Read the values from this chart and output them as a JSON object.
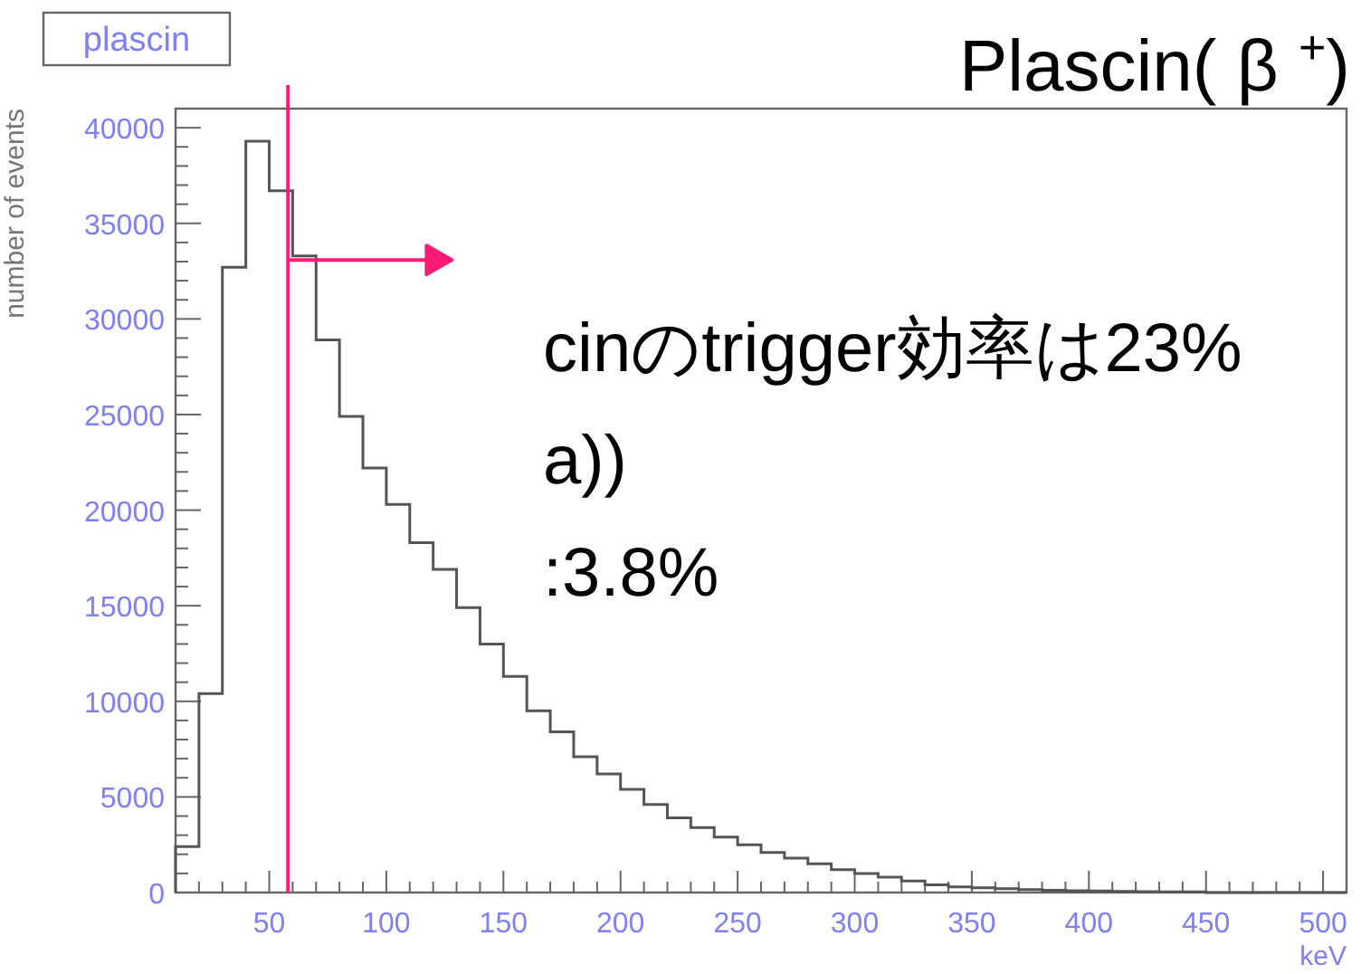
{
  "chart_data": {
    "type": "histogram",
    "title": "Plascin( β $^{+}$)",
    "subtitle": "plascin",
    "xlabel": "keV",
    "ylabel": "number of events",
    "annotations": [
      "cinのtrigger効率は23%",
      "a))",
      ":3.8%"
    ],
    "bins": [
      10,
      20,
      30,
      40,
      50,
      60,
      70,
      80,
      90,
      100,
      110,
      120,
      130,
      140,
      150,
      160,
      170,
      180,
      190,
      200,
      210,
      220,
      230,
      240,
      250,
      260,
      270,
      280,
      290,
      300,
      310,
      320,
      330,
      340,
      350,
      360,
      370,
      380,
      390,
      400,
      410,
      420,
      430,
      440,
      450,
      460,
      470,
      480,
      490,
      500,
      510
    ],
    "values": [
      2400,
      10400,
      32700,
      39300,
      36700,
      33300,
      28900,
      24900,
      22200,
      20300,
      18300,
      16900,
      14900,
      13000,
      11300,
      9500,
      8400,
      7100,
      6200,
      5400,
      4600,
      3900,
      3400,
      2900,
      2500,
      2100,
      1800,
      1500,
      1200,
      1000,
      800,
      600,
      400,
      300,
      250,
      200,
      150,
      120,
      100,
      80,
      60,
      50,
      40,
      30,
      0,
      0,
      0,
      0,
      0,
      0
    ],
    "color": "#555555",
    "xlim": [
      10,
      510
    ],
    "ylim": [
      0,
      41000
    ],
    "xticks": [
      {
        "value": 20,
        "label": null
      },
      {
        "value": 30,
        "label": null
      },
      {
        "value": 40,
        "label": null
      },
      50,
      {
        "value": 60,
        "label": null
      },
      {
        "value": 70,
        "label": null
      },
      {
        "value": 80,
        "label": null
      },
      {
        "value": 90,
        "label": null
      },
      100,
      {
        "value": 110,
        "label": null
      },
      {
        "value": 120,
        "label": null
      },
      {
        "value": 130,
        "label": null
      },
      {
        "value": 140,
        "label": null
      },
      150,
      {
        "value": 160,
        "label": null
      },
      {
        "value": 170,
        "label": null
      },
      {
        "value": 180,
        "label": null
      },
      {
        "value": 190,
        "label": null
      },
      200,
      {
        "value": 210,
        "label": null
      },
      {
        "value": 220,
        "label": null
      },
      {
        "value": 230,
        "label": null
      },
      {
        "value": 240,
        "label": null
      },
      250,
      {
        "value": 260,
        "label": null
      },
      {
        "value": 270,
        "label": null
      },
      {
        "value": 280,
        "label": null
      },
      {
        "value": 290,
        "label": null
      },
      300,
      {
        "value": 310,
        "label": null
      },
      {
        "value": 320,
        "label": null
      },
      {
        "value": 330,
        "label": null
      },
      {
        "value": 340,
        "label": null
      },
      350,
      {
        "value": 360,
        "label": null
      },
      {
        "value": 370,
        "label": null
      },
      {
        "value": 380,
        "label": null
      },
      {
        "value": 390,
        "label": null
      },
      400,
      {
        "value": 410,
        "label": null
      },
      {
        "value": 420,
        "label": null
      },
      {
        "value": 430,
        "label": null
      },
      {
        "value": 440,
        "label": null
      },
      450,
      {
        "value": 460,
        "label": null
      },
      {
        "value": 470,
        "label": null
      },
      {
        "value": 480,
        "label": null
      },
      {
        "value": 490,
        "label": null
      },
      500,
      {
        "value": 510,
        "label": null
      }
    ],
    "yticks": [
      0,
      {
        "value": 1000,
        "label": null
      },
      {
        "value": 2000,
        "label": null
      },
      {
        "value": 3000,
        "label": null
      },
      {
        "value": 4000,
        "label": null
      },
      5000,
      {
        "value": 6000,
        "label": null
      },
      {
        "value": 7000,
        "label": null
      },
      {
        "value": 8000,
        "label": null
      },
      {
        "value": 9000,
        "label": null
      },
      10000,
      {
        "value": 11000,
        "label": null
      },
      {
        "value": 12000,
        "label": null
      },
      {
        "value": 13000,
        "label": null
      },
      {
        "value": 14000,
        "label": null
      },
      15000,
      {
        "value": 16000,
        "label": null
      },
      {
        "value": 17000,
        "label": null
      },
      {
        "value": 18000,
        "label": null
      },
      {
        "value": 19000,
        "label": null
      },
      20000,
      {
        "value": 21000,
        "label": null
      },
      {
        "value": 22000,
        "label": null
      },
      {
        "value": 23000,
        "label": null
      },
      {
        "value": 24000,
        "label": null
      },
      25000,
      {
        "value": 26000,
        "label": null
      },
      {
        "value": 27000,
        "label": null
      },
      {
        "value": 28000,
        "label": null
      },
      {
        "value": 29000,
        "label": null
      },
      30000,
      {
        "value": 31000,
        "label": null
      },
      {
        "value": 32000,
        "label": null
      },
      {
        "value": 33000,
        "label": null
      },
      {
        "value": 34000,
        "label": null
      },
      35000,
      {
        "value": 36000,
        "label": null
      },
      {
        "value": 37000,
        "label": null
      },
      {
        "value": 38000,
        "label": null
      },
      {
        "value": 39000,
        "label": null
      },
      40000
    ],
    "ref_lines": [
      {
        "axis": "x",
        "value": 58,
        "color": "#ff1a75"
      }
    ]
  }
}
